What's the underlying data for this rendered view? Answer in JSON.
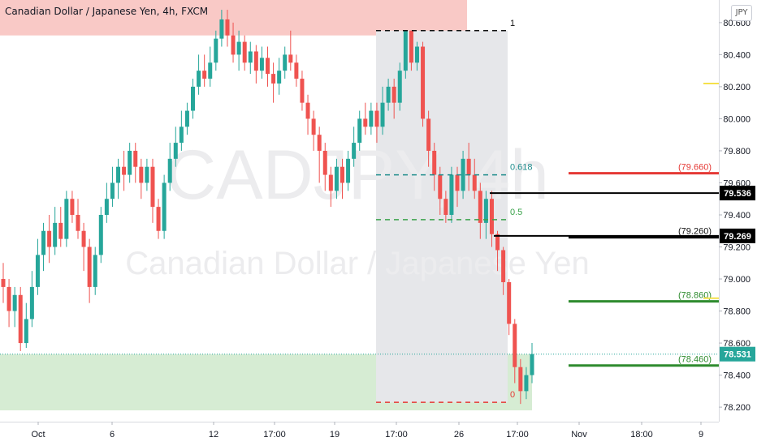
{
  "header": {
    "title": "Canadian Dollar / Japanese Yen, 4h, FXCM",
    "currency_button": "JPY"
  },
  "watermark": {
    "symbol": "CADJPY, 4h",
    "description": "Canadian Dollar / Japanese Yen"
  },
  "colors": {
    "up": "#26a69a",
    "down": "#ef5350",
    "supply_zone": "#f9c9c6",
    "demand_zone": "#d6ecd3",
    "fib_box": "#e6e7ea",
    "red_level": "#e53935",
    "green_level": "#2e8b2e",
    "black_level": "#000000",
    "yellow_marker": "#f5e14a",
    "price_tag": "#26a69a"
  },
  "chart_data": {
    "type": "candlestick",
    "symbol": "CADJPY",
    "interval": "4h",
    "x_tick_labels": [
      "Oct",
      "6",
      "12",
      "17:00",
      "19",
      "17:00",
      "26",
      "17:00",
      "Nov",
      "18:00",
      "9"
    ],
    "y_range": [
      78.16,
      80.65
    ],
    "y_ticks": [
      "78.200",
      "78.400",
      "78.600",
      "78.800",
      "79.000",
      "79.200",
      "79.400",
      "79.600",
      "79.800",
      "80.000",
      "80.200",
      "80.400",
      "80.600"
    ],
    "zones": [
      {
        "name": "supply",
        "from": 80.52,
        "to": 80.85,
        "x_from": "start",
        "x_to": "12"
      },
      {
        "name": "demand",
        "from": 78.18,
        "to": 78.53,
        "x_from": "start",
        "x_to": "17:00"
      }
    ],
    "fibonacci": [
      {
        "level": "1",
        "price": 80.55
      },
      {
        "level": "0.618",
        "price": 79.65
      },
      {
        "level": "0.5",
        "price": 79.37
      },
      {
        "level": "0",
        "price": 78.23
      }
    ],
    "levels": [
      {
        "label": "(79.660)",
        "price": 79.66,
        "color": "red"
      },
      {
        "label": "(79.260)",
        "price": 79.26,
        "color": "black"
      },
      {
        "label": "(78.860)",
        "price": 78.86,
        "color": "green"
      },
      {
        "label": "(78.460)",
        "price": 78.46,
        "color": "green"
      }
    ],
    "structure_lines": [
      79.536,
      79.269
    ],
    "price_tags": [
      {
        "text": "79.536",
        "price": 79.536,
        "style": "black"
      },
      {
        "text": "79.269",
        "price": 79.269,
        "style": "black"
      },
      {
        "text": "78.531",
        "price": 78.531,
        "style": "teal"
      }
    ],
    "last_price": 78.531,
    "yellow_markers": [
      80.22,
      78.88
    ],
    "candles": [
      [
        79.0,
        78.95,
        79.1,
        78.85
      ],
      [
        78.95,
        78.8,
        79.0,
        78.7
      ],
      [
        78.8,
        78.9,
        78.95,
        78.7
      ],
      [
        78.9,
        78.6,
        78.95,
        78.55
      ],
      [
        78.6,
        78.75,
        78.85,
        78.57
      ],
      [
        78.75,
        78.95,
        79.05,
        78.7
      ],
      [
        78.95,
        79.15,
        79.25,
        78.9
      ],
      [
        79.15,
        79.3,
        79.35,
        79.05
      ],
      [
        79.3,
        79.2,
        79.4,
        79.1
      ],
      [
        79.2,
        79.35,
        79.45,
        79.15
      ],
      [
        79.35,
        79.25,
        79.45,
        79.2
      ],
      [
        79.25,
        79.5,
        79.55,
        79.2
      ],
      [
        79.5,
        79.4,
        79.55,
        79.35
      ],
      [
        79.4,
        79.3,
        79.5,
        79.25
      ],
      [
        79.3,
        79.2,
        79.35,
        79.05
      ],
      [
        79.2,
        78.95,
        79.25,
        78.85
      ],
      [
        78.95,
        79.15,
        79.2,
        78.9
      ],
      [
        79.15,
        79.4,
        79.45,
        79.1
      ],
      [
        79.4,
        79.5,
        79.6,
        79.35
      ],
      [
        79.5,
        79.6,
        79.7,
        79.45
      ],
      [
        79.6,
        79.7,
        79.75,
        79.5
      ],
      [
        79.7,
        79.65,
        79.8,
        79.55
      ],
      [
        79.65,
        79.8,
        79.85,
        79.6
      ],
      [
        79.8,
        79.7,
        79.85,
        79.6
      ],
      [
        79.7,
        79.6,
        79.75,
        79.5
      ],
      [
        79.6,
        79.7,
        79.75,
        79.55
      ],
      [
        79.7,
        79.45,
        79.75,
        79.35
      ],
      [
        79.45,
        79.3,
        79.5,
        79.25
      ],
      [
        79.3,
        79.6,
        79.65,
        79.25
      ],
      [
        79.6,
        79.75,
        79.85,
        79.55
      ],
      [
        79.75,
        79.85,
        79.95,
        79.7
      ],
      [
        79.85,
        79.95,
        80.05,
        79.8
      ],
      [
        79.95,
        80.05,
        80.1,
        79.9
      ],
      [
        80.05,
        80.2,
        80.25,
        80.0
      ],
      [
        80.2,
        80.3,
        80.4,
        80.15
      ],
      [
        80.3,
        80.25,
        80.4,
        80.2
      ],
      [
        80.25,
        80.35,
        80.45,
        80.2
      ],
      [
        80.35,
        80.5,
        80.55,
        80.3
      ],
      [
        80.5,
        80.62,
        80.68,
        80.45
      ],
      [
        80.62,
        80.52,
        80.68,
        80.45
      ],
      [
        80.52,
        80.4,
        80.6,
        80.35
      ],
      [
        80.4,
        80.48,
        80.55,
        80.3
      ],
      [
        80.48,
        80.35,
        80.52,
        80.3
      ],
      [
        80.35,
        80.42,
        80.48,
        80.28
      ],
      [
        80.42,
        80.3,
        80.46,
        80.22
      ],
      [
        80.3,
        80.38,
        80.45,
        80.25
      ],
      [
        80.38,
        80.28,
        80.45,
        80.2
      ],
      [
        80.28,
        80.22,
        80.35,
        80.1
      ],
      [
        80.22,
        80.3,
        80.38,
        80.15
      ],
      [
        80.3,
        80.4,
        80.45,
        80.25
      ],
      [
        80.4,
        80.35,
        80.55,
        80.3
      ],
      [
        80.35,
        80.25,
        80.4,
        80.2
      ],
      [
        80.25,
        80.1,
        80.3,
        80.05
      ],
      [
        80.1,
        80.0,
        80.15,
        79.9
      ],
      [
        80.0,
        79.9,
        80.05,
        79.8
      ],
      [
        79.9,
        79.8,
        79.95,
        79.6
      ],
      [
        79.8,
        79.65,
        79.85,
        79.55
      ],
      [
        79.65,
        79.55,
        79.7,
        79.45
      ],
      [
        79.55,
        79.7,
        79.75,
        79.5
      ],
      [
        79.7,
        79.6,
        79.75,
        79.5
      ],
      [
        79.6,
        79.75,
        79.8,
        79.55
      ],
      [
        79.75,
        79.85,
        79.95,
        79.7
      ],
      [
        79.85,
        80.0,
        80.05,
        79.8
      ],
      [
        80.0,
        79.95,
        80.1,
        79.9
      ],
      [
        79.95,
        80.05,
        80.1,
        79.9
      ],
      [
        80.05,
        79.95,
        80.1,
        79.85
      ],
      [
        79.95,
        80.1,
        80.2,
        79.9
      ],
      [
        80.1,
        80.2,
        80.25,
        80.05
      ],
      [
        80.2,
        80.1,
        80.25,
        80.0
      ],
      [
        80.1,
        80.3,
        80.35,
        80.05
      ],
      [
        80.3,
        80.55,
        80.55,
        80.25
      ],
      [
        80.55,
        80.35,
        80.55,
        80.3
      ],
      [
        80.35,
        80.45,
        80.48,
        80.3
      ],
      [
        80.45,
        80.0,
        80.48,
        79.95
      ],
      [
        80.0,
        79.8,
        80.05,
        79.7
      ],
      [
        79.8,
        79.65,
        79.85,
        79.55
      ],
      [
        79.65,
        79.5,
        79.7,
        79.4
      ],
      [
        79.5,
        79.4,
        79.55,
        79.35
      ],
      [
        79.4,
        79.65,
        79.7,
        79.35
      ],
      [
        79.65,
        79.55,
        79.7,
        79.45
      ],
      [
        79.55,
        79.75,
        79.8,
        79.5
      ],
      [
        79.75,
        79.65,
        79.85,
        79.55
      ],
      [
        79.65,
        79.55,
        79.75,
        79.5
      ],
      [
        79.55,
        79.35,
        79.6,
        79.25
      ],
      [
        79.35,
        79.5,
        79.55,
        79.25
      ],
      [
        79.5,
        79.28,
        79.55,
        79.2
      ],
      [
        79.28,
        79.18,
        79.3,
        79.05
      ],
      [
        79.18,
        78.98,
        79.2,
        78.9
      ],
      [
        78.98,
        78.72,
        79.0,
        78.65
      ],
      [
        78.72,
        78.45,
        78.75,
        78.35
      ],
      [
        78.45,
        78.3,
        78.5,
        78.22
      ],
      [
        78.3,
        78.4,
        78.45,
        78.25
      ],
      [
        78.4,
        78.531,
        78.6,
        78.35
      ]
    ]
  }
}
